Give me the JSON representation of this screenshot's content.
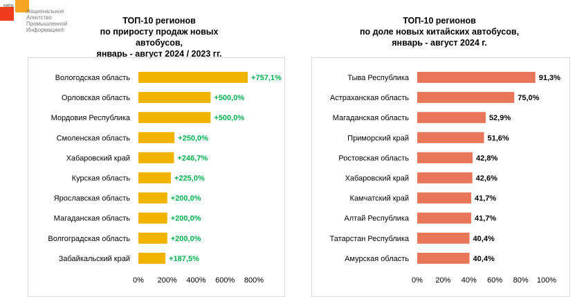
{
  "logo": {
    "small": "НАПИ",
    "lines": [
      "Национальное",
      "Агентство",
      "Промышленной",
      "Информации®"
    ]
  },
  "chart_data": [
    {
      "type": "bar",
      "orientation": "horizontal",
      "title": [
        "ТОП-10 регионов",
        "по приросту продаж новых автобусов,",
        "январь - август 2024 / 2023 гг."
      ],
      "categories": [
        "Вологодская область",
        "Орловская область",
        "Мордовия Республика",
        "Смоленская область",
        "Хабаровский край",
        "Курская область",
        "Ярославская область",
        "Магаданская область",
        "Волгоградская область",
        "Забайкальский край"
      ],
      "values": [
        757.1,
        500.0,
        500.0,
        250.0,
        246.7,
        225.0,
        200.0,
        200.0,
        200.0,
        187.5
      ],
      "labels": [
        "+757,1%",
        "+500,0%",
        "+500,0%",
        "+250,0%",
        "+246,7%",
        "+225,0%",
        "+200,0%",
        "+200,0%",
        "+200,0%",
        "+187,5%"
      ],
      "xlim": [
        0,
        800
      ],
      "ticks": [
        "0%",
        "200%",
        "400%",
        "600%",
        "800%"
      ],
      "tick_values": [
        0,
        200,
        400,
        600,
        800
      ],
      "bar_color": "#f0b400",
      "label_color": "#00b050"
    },
    {
      "type": "bar",
      "orientation": "horizontal",
      "title": [
        "ТОП-10 регионов",
        "по доле новых китайских автобусов,",
        "январь - август 2024 г."
      ],
      "categories": [
        "Тыва Республика",
        "Астраханская область",
        "Магаданская область",
        "Приморский край",
        "Ростовская область",
        "Хабаровский край",
        "Камчатский край",
        "Алтай Республика",
        "Татарстан Республика",
        "Амурская область"
      ],
      "values": [
        91.3,
        75.0,
        52.9,
        51.6,
        42.8,
        42.6,
        41.7,
        41.7,
        40.4,
        40.4
      ],
      "labels": [
        "91,3%",
        "75,0%",
        "52,9%",
        "51,6%",
        "42,8%",
        "42,6%",
        "41,7%",
        "41,7%",
        "40,4%",
        "40,4%"
      ],
      "xlim": [
        0,
        100
      ],
      "ticks": [
        "0%",
        "20%",
        "40%",
        "60%",
        "80%",
        "100%"
      ],
      "tick_values": [
        0,
        20,
        40,
        60,
        80,
        100
      ],
      "bar_color": "#e8775a",
      "label_color": "#000000"
    }
  ]
}
